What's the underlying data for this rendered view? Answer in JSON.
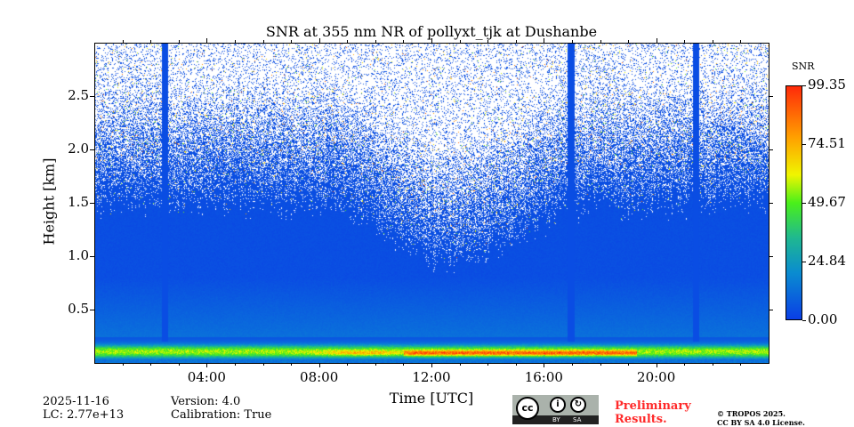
{
  "chart_data": {
    "type": "heatmap",
    "title": "SNR at 355 nm NR of pollyxt_tjk at Dushanbe",
    "xlabel": "Time [UTC]",
    "ylabel": "Height [km]",
    "xlim_hours": [
      0,
      24
    ],
    "ylim_km": [
      0,
      3.0
    ],
    "xticks": [
      {
        "v": 4,
        "label": "04:00"
      },
      {
        "v": 8,
        "label": "08:00"
      },
      {
        "v": 12,
        "label": "12:00"
      },
      {
        "v": 16,
        "label": "16:00"
      },
      {
        "v": 20,
        "label": "20:00"
      }
    ],
    "yticks": [
      {
        "v": 0.5,
        "label": "0.5"
      },
      {
        "v": 1.0,
        "label": "1.0"
      },
      {
        "v": 1.5,
        "label": "1.5"
      },
      {
        "v": 2.0,
        "label": "2.0"
      },
      {
        "v": 2.5,
        "label": "2.5"
      }
    ],
    "colorbar": {
      "label": "SNR",
      "range": [
        0,
        99.35
      ],
      "ticks": [
        {
          "v": 0,
          "label": "0.00"
        },
        {
          "v": 24.84,
          "label": "24.84"
        },
        {
          "v": 49.67,
          "label": "49.67"
        },
        {
          "v": 74.51,
          "label": "74.51"
        },
        {
          "v": 99.35,
          "label": "99.35"
        }
      ]
    },
    "features": {
      "aerosol_layer_km": [
        0.05,
        0.2
      ],
      "signal_gap_hours": [
        2.5,
        16.95,
        21.4
      ]
    }
  },
  "info": {
    "date": "2025-11-16",
    "lc": "LC: 2.77e+13",
    "version": "Version: 4.0",
    "calibration": "Calibration: True"
  },
  "license": {
    "cc": "cc",
    "by": "BY",
    "sa": "SA",
    "prelim1": "Preliminary",
    "prelim2": "Results.",
    "copyright": "© TROPOS 2025.",
    "license_text": "CC BY SA 4.0 License."
  }
}
